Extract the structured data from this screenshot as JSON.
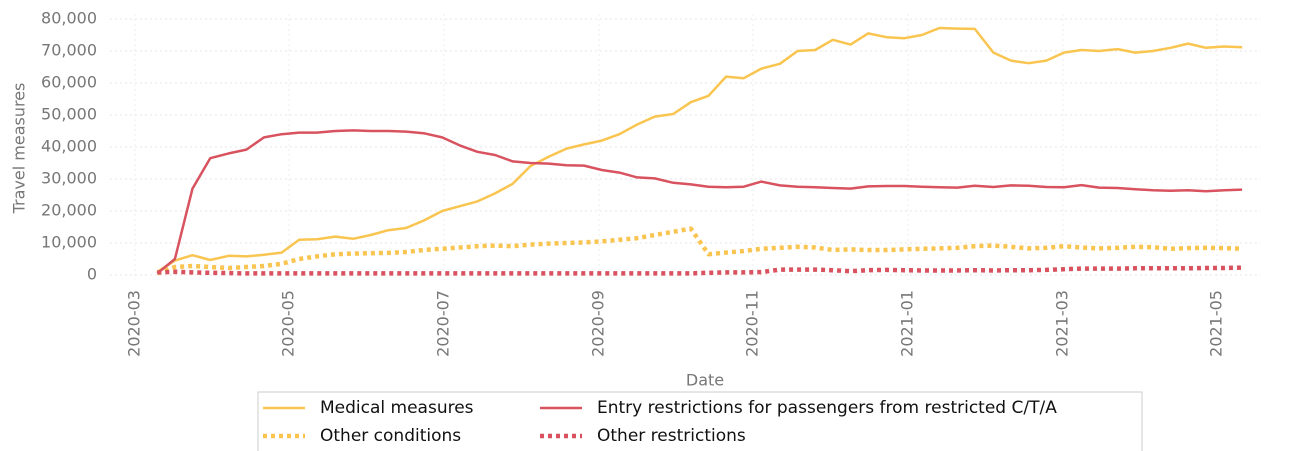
{
  "chart_data": {
    "type": "line",
    "xlabel": "Date",
    "ylabel": "Travel measures",
    "x": [
      2020.191,
      2020.21,
      2020.229,
      2020.248,
      2020.268,
      2020.287,
      2020.306,
      2020.325,
      2020.344,
      2020.363,
      2020.383,
      2020.402,
      2020.421,
      2020.44,
      2020.459,
      2020.478,
      2020.498,
      2020.517,
      2020.536,
      2020.555,
      2020.574,
      2020.593,
      2020.613,
      2020.632,
      2020.651,
      2020.67,
      2020.689,
      2020.708,
      2020.727,
      2020.747,
      2020.766,
      2020.785,
      2020.804,
      2020.823,
      2020.842,
      2020.862,
      2020.881,
      2020.9,
      2020.919,
      2020.938,
      2020.957,
      2020.977,
      2020.996,
      2021.015,
      2021.034,
      2021.053,
      2021.072,
      2021.092,
      2021.111,
      2021.13,
      2021.149,
      2021.168,
      2021.187,
      2021.206,
      2021.226,
      2021.245,
      2021.264,
      2021.283,
      2021.302,
      2021.321,
      2021.341,
      2021.36
    ],
    "series": [
      {
        "name": "Medical measures",
        "color": "#f9c550",
        "dash": "solid",
        "values": [
          1000,
          4500,
          6200,
          4700,
          6000,
          5800,
          6300,
          7000,
          11000,
          11200,
          12000,
          11300,
          12500,
          14000,
          14700,
          17000,
          20000,
          21500,
          23000,
          25500,
          28500,
          34000,
          37000,
          39500,
          40800,
          42000,
          44000,
          47000,
          49500,
          50300,
          54000,
          56000,
          62000,
          61500,
          64500,
          66000,
          70000,
          70300,
          73500,
          72000,
          75500,
          74300,
          74000,
          75000,
          77200,
          77000,
          76900,
          69500,
          67000,
          66200,
          67000,
          69500,
          70300,
          70000,
          70600,
          69500,
          70000,
          71000,
          72300,
          71000,
          71400,
          71200
        ]
      },
      {
        "name": "Other conditions",
        "color": "#f9c550",
        "dash": "dotted",
        "values": [
          500,
          2500,
          2800,
          2500,
          2200,
          2500,
          2800,
          3500,
          5000,
          5800,
          6500,
          6700,
          6800,
          6900,
          7200,
          7800,
          8200,
          8600,
          9000,
          9200,
          9000,
          9500,
          9800,
          10000,
          10200,
          10500,
          11000,
          11500,
          12500,
          13500,
          14500,
          6500,
          7000,
          7500,
          8200,
          8500,
          8800,
          8600,
          7800,
          8000,
          7800,
          7800,
          8000,
          8200,
          8300,
          8500,
          9000,
          9200,
          8800,
          8300,
          8500,
          9000,
          8600,
          8300,
          8500,
          8800,
          8700,
          8200,
          8400,
          8500,
          8400,
          8200
        ]
      },
      {
        "name": "Entry restrictions for passengers from restricted C/T/A",
        "color": "#d8535f",
        "dash": "solid",
        "values": [
          500,
          5000,
          27000,
          36500,
          38000,
          39200,
          43000,
          44000,
          44500,
          44500,
          45000,
          45200,
          45000,
          45000,
          44800,
          44300,
          43000,
          40500,
          38500,
          37500,
          35500,
          35000,
          34800,
          34300,
          34200,
          32800,
          32000,
          30500,
          30200,
          28800,
          28300,
          27600,
          27400,
          27600,
          29200,
          28000,
          27600,
          27400,
          27200,
          27000,
          27700,
          27800,
          27800,
          27600,
          27400,
          27300,
          27900,
          27500,
          28000,
          27900,
          27500,
          27400,
          28100,
          27300,
          27200,
          26800,
          26500,
          26300,
          26500,
          26200,
          26500,
          26700
        ]
      },
      {
        "name": "Other restrictions",
        "color": "#d8535f",
        "dash": "dotted",
        "values": [
          800,
          1000,
          800,
          700,
          600,
          500,
          500,
          500,
          500,
          500,
          500,
          500,
          500,
          500,
          500,
          500,
          500,
          500,
          500,
          500,
          500,
          500,
          500,
          500,
          500,
          500,
          500,
          500,
          500,
          500,
          500,
          700,
          800,
          800,
          900,
          1700,
          1700,
          1700,
          1500,
          1200,
          1500,
          1600,
          1500,
          1400,
          1400,
          1400,
          1500,
          1400,
          1500,
          1500,
          1600,
          1800,
          2000,
          2000,
          2000,
          2100,
          2100,
          2100,
          2100,
          2200,
          2200,
          2300
        ]
      }
    ],
    "xlim": [
      2020.14,
      2021.38
    ],
    "xticks": [
      {
        "value": 2020.167,
        "label": "2020-03"
      },
      {
        "value": 2020.333,
        "label": "2020-05"
      },
      {
        "value": 2020.5,
        "label": "2020-07"
      },
      {
        "value": 2020.667,
        "label": "2020-09"
      },
      {
        "value": 2020.833,
        "label": "2020-11"
      },
      {
        "value": 2021.0,
        "label": "2021-01"
      },
      {
        "value": 2021.167,
        "label": "2021-03"
      },
      {
        "value": 2021.333,
        "label": "2021-05"
      }
    ],
    "ylim": [
      0,
      80000
    ],
    "yticks": [
      {
        "value": 0,
        "label": "0"
      },
      {
        "value": 10000,
        "label": "10,000"
      },
      {
        "value": 20000,
        "label": "20,000"
      },
      {
        "value": 30000,
        "label": "30,000"
      },
      {
        "value": 40000,
        "label": "40,000"
      },
      {
        "value": 50000,
        "label": "50,000"
      },
      {
        "value": 60000,
        "label": "60,000"
      },
      {
        "value": 70000,
        "label": "70,000"
      },
      {
        "value": 80000,
        "label": "80,000"
      }
    ],
    "grid": true,
    "legend": "bottom"
  }
}
